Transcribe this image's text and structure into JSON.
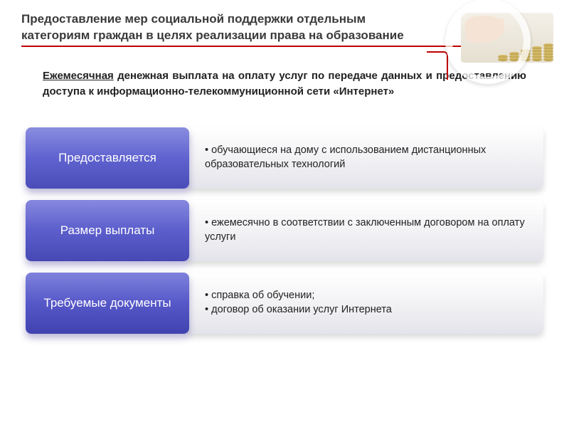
{
  "header": {
    "title": "Предоставление мер социальной поддержки отдельным категориям граждан в целях реализации права на образование",
    "accent_color": "#c00000"
  },
  "subtitle": {
    "underlined_word": "Ежемесячная",
    "rest": " денежная выплата на оплату услуг по передаче данных и предоставлению доступа к информационно-телекоммуниционной сети «Интернет»"
  },
  "rows": [
    {
      "label": "Предоставляется",
      "gradient": {
        "top": "#8b8de0",
        "mid": "#6063cf",
        "bot": "#4a4db8"
      },
      "items": [
        "обучающиеся на дому с использованием дистанционных образовательных технологий"
      ]
    },
    {
      "label": "Размер выплаты",
      "gradient": {
        "top": "#8688df",
        "mid": "#5c5ecc",
        "bot": "#4648b4"
      },
      "items": [
        "ежемесячно в соответствии с заключенным договором на оплату услуги"
      ]
    },
    {
      "label": "Требуемые документы",
      "gradient": {
        "top": "#7f82db",
        "mid": "#5658c8",
        "bot": "#4042b0"
      },
      "items": [
        "справка об обучении;",
        "договор об оказании услуг Интернета"
      ]
    }
  ]
}
